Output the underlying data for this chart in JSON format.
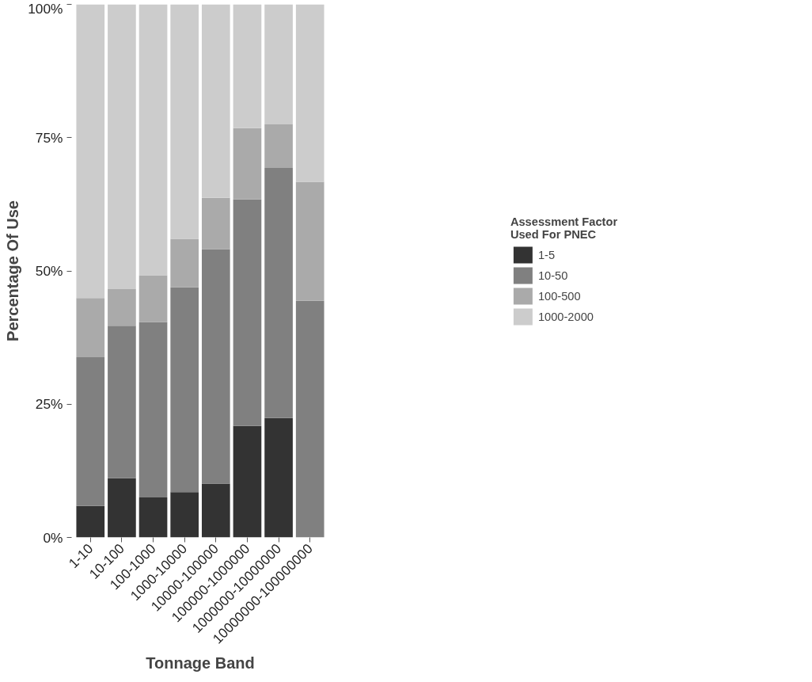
{
  "chart_data": {
    "type": "bar",
    "stacked": true,
    "xlabel": "Tonnage Band",
    "ylabel": "Percentage Of Use",
    "legend_title": "Assessment Factor\nUsed For PNEC",
    "legend": "right",
    "categories": [
      "1-10",
      "10-100",
      "100-1000",
      "1000-10000",
      "10000-100000",
      "100000-1000000",
      "1000000-10000000",
      "10000000-100000000"
    ],
    "series": [
      {
        "name": "1-5",
        "color": "#333333",
        "values": [
          5.9,
          11.1,
          7.5,
          8.5,
          10.1,
          20.9,
          22.4,
          0
        ]
      },
      {
        "name": "10-50",
        "color": "#808080",
        "values": [
          27.9,
          28.6,
          32.9,
          38.4,
          44.0,
          42.5,
          46.9,
          44.4
        ]
      },
      {
        "name": "100-500",
        "color": "#aaaaaa",
        "values": [
          11.1,
          6.9,
          8.8,
          9.1,
          9.6,
          13.4,
          8.2,
          22.3
        ]
      },
      {
        "name": "1000-2000",
        "color": "#cccccc",
        "values": [
          55.1,
          53.4,
          50.8,
          44.0,
          36.3,
          23.2,
          22.5,
          33.3
        ]
      }
    ],
    "ylim": [
      0,
      100
    ],
    "yticks": [
      {
        "value": 0,
        "label": "0%"
      },
      {
        "value": 25,
        "label": "25%"
      },
      {
        "value": 50,
        "label": "50%"
      },
      {
        "value": 75,
        "label": "75%"
      },
      {
        "value": 100,
        "label": "100%"
      }
    ],
    "grid": false
  }
}
